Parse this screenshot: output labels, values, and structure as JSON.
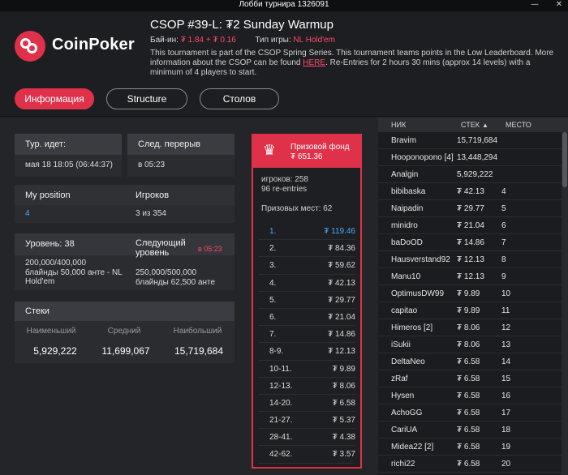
{
  "window": {
    "title": "Лобби турнира 1326091",
    "minimize_glyph": "—",
    "close_glyph": "✕"
  },
  "brand": {
    "name": "CoinPoker",
    "accent": "#e0314b"
  },
  "tournament": {
    "title": "CSOP #39-L: ₮2 Sunday Warmup",
    "buyin_label": "Бай-ин:",
    "buyin_value": "₮ 1.84 + ₮ 0.16",
    "game_type_label": "Тип игры:",
    "game_type_value": "NL Hold'em",
    "desc_before_link": "This tournament is part of the CSOP Spring Series. This tournament teams points in the Low Leaderboard. More information about the CSOP can be found ",
    "desc_link": "HERE",
    "desc_after_link": ". Re-Entries for 2 hours 30 mins (approx 14 levels) with a minimum of 4 players to start."
  },
  "tabs": [
    {
      "label": "Информация",
      "active": true
    },
    {
      "label": "Structure",
      "active": false
    },
    {
      "label": "Столов",
      "active": false
    }
  ],
  "info": {
    "running": {
      "label": "Тур. идет:",
      "value": "мая 18 18:05 (06:44:37)"
    },
    "next_break": {
      "label": "След. перерыв",
      "value": "в 05:23"
    },
    "my_position": {
      "label": "My position",
      "value": "4"
    },
    "players": {
      "label": "Игроков",
      "value": "3 из 354"
    },
    "level": {
      "label": "Уровень: 38",
      "blinds": "200,000/400,000",
      "blinds_detail": "блайнды 50,000 анте - NL Hold'em"
    },
    "next_level": {
      "label": "Следующий уровень",
      "timer": "в 05:23",
      "blinds": "250,000/500,000",
      "blinds_detail": "блайнды 62,500 анте"
    },
    "stacks": {
      "label": "Стеки",
      "min_label": "Наименьший",
      "avg_label": "Средний",
      "max_label": "Наибольший",
      "min_value": "5,929,222",
      "avg_value": "11,699,067",
      "max_value": "15,719,684"
    }
  },
  "prize": {
    "label": "Призовой фонд",
    "value": "₮ 651.36",
    "players_line": "игроков: 258",
    "reentries_line": "96 re-entries",
    "paid_line": "Призовых мест: 62",
    "rows": [
      {
        "place": "1.",
        "amount": "₮ 119.46"
      },
      {
        "place": "2.",
        "amount": "₮ 84.36"
      },
      {
        "place": "3.",
        "amount": "₮ 59.62"
      },
      {
        "place": "4.",
        "amount": "₮ 42.13"
      },
      {
        "place": "5.",
        "amount": "₮ 29.77"
      },
      {
        "place": "6.",
        "amount": "₮ 21.04"
      },
      {
        "place": "7.",
        "amount": "₮ 14.86"
      },
      {
        "place": "8-9.",
        "amount": "₮ 12.13"
      },
      {
        "place": "10-11.",
        "amount": "₮ 9.89"
      },
      {
        "place": "12-13.",
        "amount": "₮ 8.06"
      },
      {
        "place": "14-20.",
        "amount": "₮ 6.58"
      },
      {
        "place": "21-27.",
        "amount": "₮ 5.37"
      },
      {
        "place": "28-41.",
        "amount": "₮ 4.38"
      },
      {
        "place": "42-62.",
        "amount": "₮ 3.57"
      }
    ]
  },
  "player_list": {
    "col_name": "НИК",
    "col_stack": "СТЕК",
    "col_sort_glyph": "▲",
    "col_place": "МЕСТО",
    "rows": [
      {
        "name": "Bravim",
        "stack": "15,719,684",
        "place": ""
      },
      {
        "name": "Hooponopono [4]",
        "stack": "13,448,294",
        "place": ""
      },
      {
        "name": "Analgin",
        "stack": "5,929,222",
        "place": ""
      },
      {
        "name": "bibibaska",
        "stack": "₮ 42.13",
        "place": "4"
      },
      {
        "name": "Naipadin",
        "stack": "₮ 29.77",
        "place": "5"
      },
      {
        "name": "minidro",
        "stack": "₮ 21.04",
        "place": "6"
      },
      {
        "name": "baDoOD",
        "stack": "₮ 14.86",
        "place": "7"
      },
      {
        "name": "Hausverstand92",
        "stack": "₮ 12.13",
        "place": "8"
      },
      {
        "name": "Manu10",
        "stack": "₮ 12.13",
        "place": "9"
      },
      {
        "name": "OptimusDW99",
        "stack": "₮ 9.89",
        "place": "10"
      },
      {
        "name": "capitao",
        "stack": "₮ 9.89",
        "place": "11"
      },
      {
        "name": "Himeros [2]",
        "stack": "₮ 8.06",
        "place": "12"
      },
      {
        "name": "iSukii",
        "stack": "₮ 8.06",
        "place": "13"
      },
      {
        "name": "DeltaNeo",
        "stack": "₮ 6.58",
        "place": "14"
      },
      {
        "name": "zRaf",
        "stack": "₮ 6.58",
        "place": "15"
      },
      {
        "name": "Hysen",
        "stack": "₮ 6.58",
        "place": "16"
      },
      {
        "name": "AchoGG",
        "stack": "₮ 6.58",
        "place": "17"
      },
      {
        "name": "CariUA",
        "stack": "₮ 6.58",
        "place": "18"
      },
      {
        "name": "Midea22 [2]",
        "stack": "₮ 6.58",
        "place": "19"
      },
      {
        "name": "richi22",
        "stack": "₮ 6.58",
        "place": "20"
      }
    ]
  }
}
